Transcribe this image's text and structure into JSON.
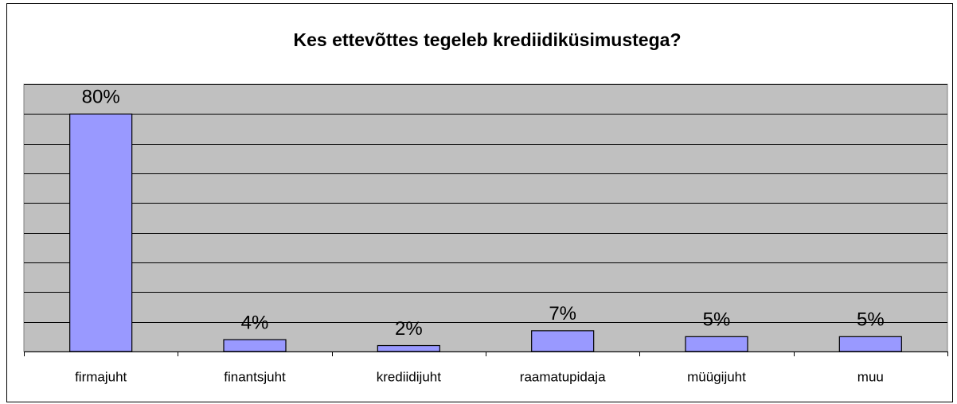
{
  "chart_data": {
    "type": "bar",
    "title": "Kes ettevõttes tegeleb krediidiküsimustega?",
    "categories": [
      "firmajuht",
      "finantsjuht",
      "krediidijuht",
      "raamatupidaja",
      "müügijuht",
      "muu"
    ],
    "values": [
      80,
      4,
      2,
      7,
      5,
      5
    ],
    "value_labels": [
      "80%",
      "4%",
      "2%",
      "7%",
      "5%",
      "5%"
    ],
    "color": "#9999ff",
    "ylim": [
      0,
      90
    ],
    "yticks": [
      0,
      10,
      20,
      30,
      40,
      50,
      60,
      70,
      80,
      90
    ],
    "grid": true
  }
}
